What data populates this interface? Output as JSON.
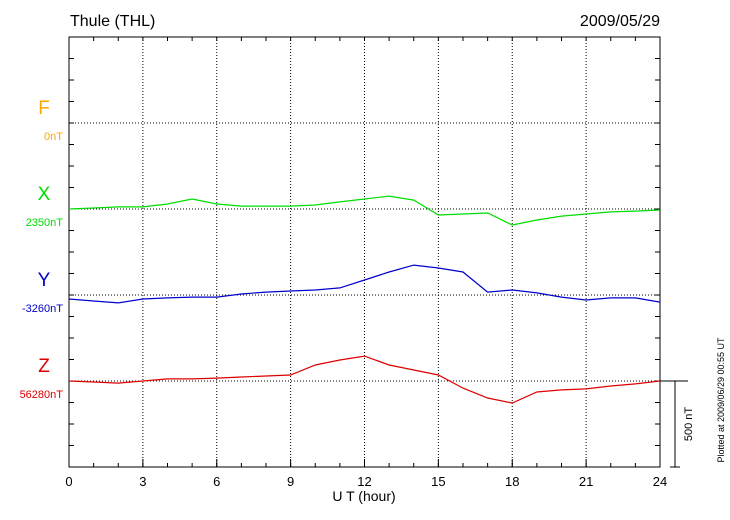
{
  "chart_data": {
    "type": "line",
    "title": "Thule (THL)",
    "date": "2009/05/29",
    "xlabel": "U T (hour)",
    "xlim": [
      0,
      24
    ],
    "xticks": [
      0,
      3,
      6,
      9,
      12,
      15,
      18,
      21,
      24
    ],
    "grid": true,
    "scale_bar": {
      "value": 500,
      "label": "500 nT"
    },
    "note": "Plotted at 2009/06/29 00:55 UT",
    "x": [
      0,
      1,
      2,
      3,
      4,
      5,
      6,
      7,
      8,
      9,
      10,
      11,
      12,
      13,
      14,
      15,
      16,
      17,
      18,
      19,
      20,
      21,
      22,
      23,
      24
    ],
    "series": [
      {
        "name": "F",
        "baseline_label": "0nT",
        "color": "#ffa500",
        "values": [
          null,
          null,
          null,
          null,
          null,
          null,
          null,
          null,
          null,
          null,
          null,
          null,
          null,
          null,
          null,
          null,
          null,
          null,
          null,
          null,
          null,
          null,
          null,
          null,
          null
        ]
      },
      {
        "name": "X",
        "baseline_label": "2350nT",
        "color": "#00dd00",
        "values": [
          0,
          6,
          12,
          12,
          29,
          58,
          29,
          17,
          17,
          17,
          23,
          41,
          58,
          75,
          52,
          -35,
          -29,
          -23,
          -93,
          -64,
          -41,
          -29,
          -17,
          -12,
          -6
        ]
      },
      {
        "name": "Y",
        "baseline_label": "-3260nT",
        "color": "#0000cc",
        "values": [
          -23,
          -35,
          -46,
          -23,
          -17,
          -12,
          -12,
          6,
          17,
          23,
          29,
          41,
          87,
          134,
          174,
          157,
          134,
          17,
          29,
          12,
          -12,
          -29,
          -17,
          -17,
          -41
        ]
      },
      {
        "name": "Z",
        "baseline_label": "56280nT",
        "color": "#dd0000",
        "values": [
          0,
          -6,
          -12,
          0,
          12,
          12,
          17,
          23,
          29,
          35,
          93,
          122,
          145,
          93,
          64,
          35,
          -41,
          -99,
          -128,
          -64,
          -52,
          -46,
          -29,
          -17,
          0
        ]
      }
    ]
  }
}
